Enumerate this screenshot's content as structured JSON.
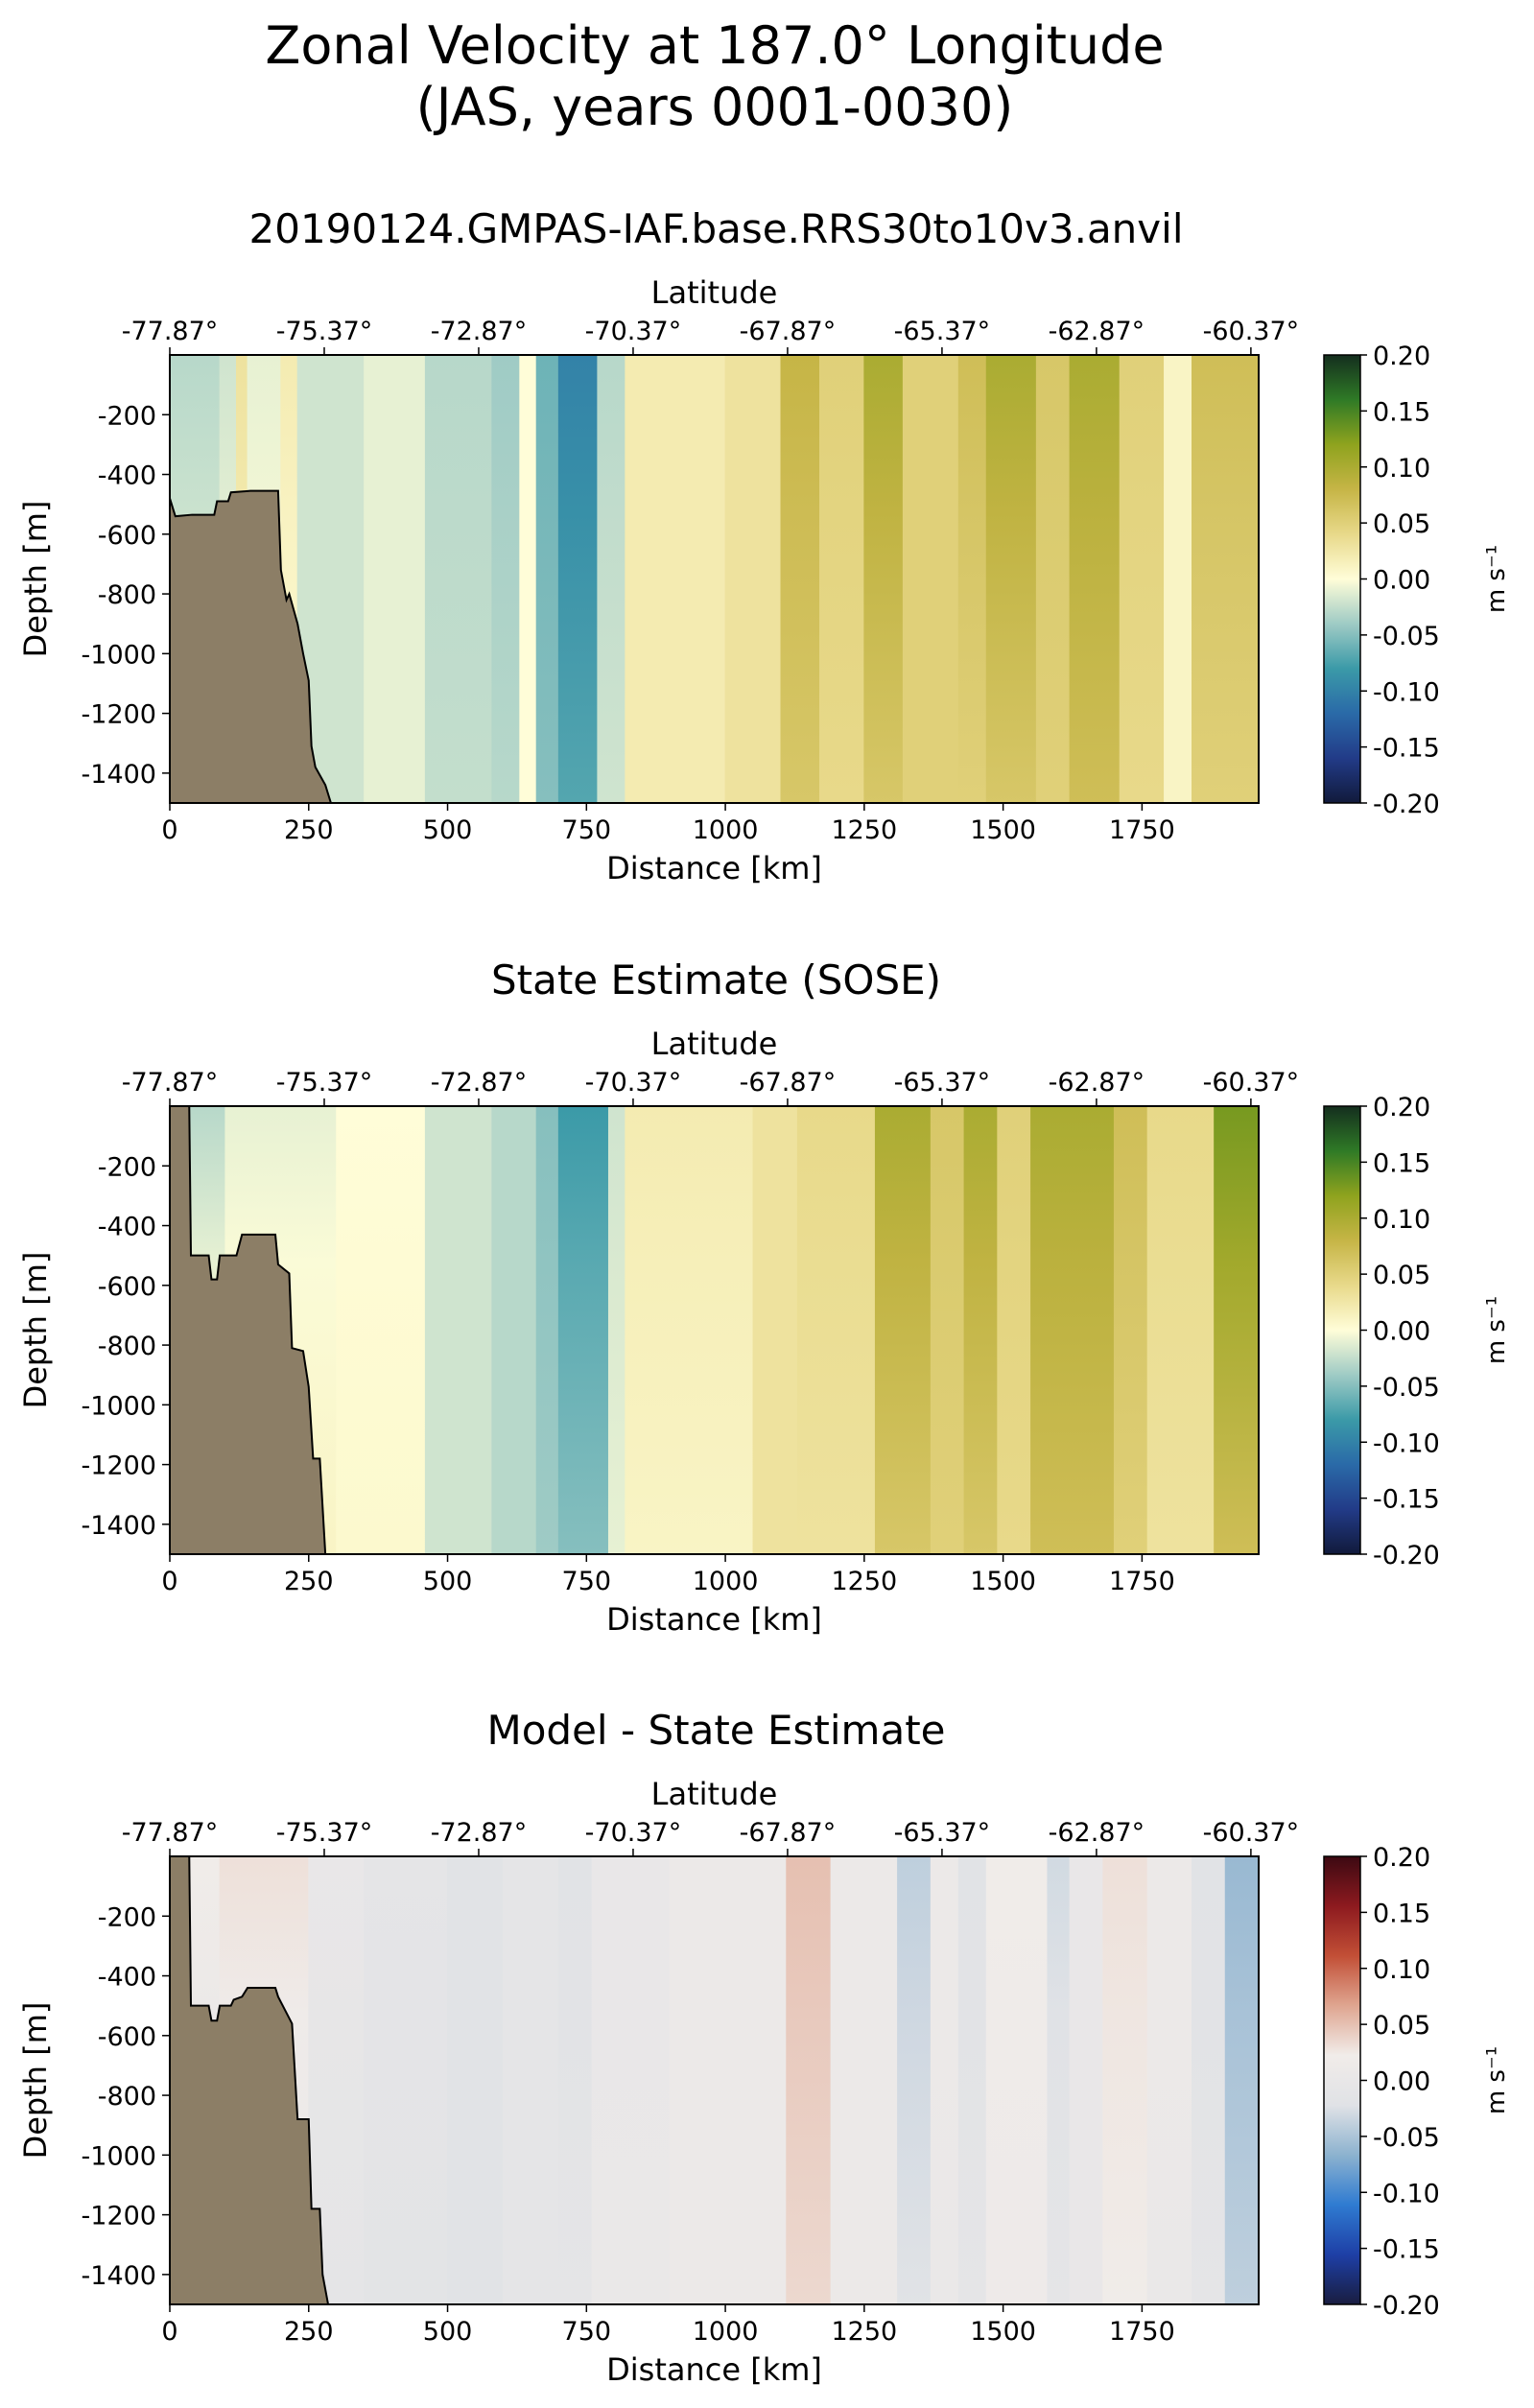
{
  "figure": {
    "title_line1": "Zonal Velocity at 187.0° Longitude",
    "title_line2": "(JAS, years 0001-0030)"
  },
  "chart_data": [
    {
      "type": "heatmap",
      "title": "20190124.GMPAS-IAF.base.RRS30to10v3.anvil",
      "xlabel": "Distance [km]",
      "ylabel": "Depth [m]",
      "top_xlabel": "Latitude",
      "xlim": [
        0,
        1960
      ],
      "ylim": [
        -1500,
        0
      ],
      "xticks": [
        0,
        250,
        500,
        750,
        1000,
        1250,
        1500,
        1750
      ],
      "xtick_labels": [
        "0",
        "250",
        "500",
        "750",
        "1000",
        "1250",
        "1500",
        "1750"
      ],
      "yticks": [
        -200,
        -400,
        -600,
        -800,
        -1000,
        -1200,
        -1400
      ],
      "ytick_labels": [
        "-200",
        "-400",
        "-600",
        "-800",
        "-1000",
        "-1200",
        "-1400"
      ],
      "top_xticks": [
        0,
        278,
        556,
        834,
        1112,
        1390,
        1668,
        1946
      ],
      "top_xtick_labels": [
        "-77.87°",
        "-75.37°",
        "-72.87°",
        "-70.37°",
        "-67.87°",
        "-65.37°",
        "-62.87°",
        "-60.37°"
      ],
      "colorbar": {
        "label": "m s⁻¹",
        "colormap": "cmocean-delta",
        "range": [
          -0.2,
          0.2
        ],
        "ticks": [
          0.2,
          0.15,
          0.1,
          0.05,
          0.0,
          -0.05,
          -0.1,
          -0.15,
          -0.2
        ],
        "tick_labels": [
          "0.20",
          "0.15",
          "0.10",
          "0.05",
          "0.00",
          "-0.05",
          "-0.10",
          "-0.15",
          "-0.20"
        ]
      },
      "bathymetry": [
        [
          0,
          -480
        ],
        [
          10,
          -540
        ],
        [
          40,
          -535
        ],
        [
          80,
          -535
        ],
        [
          85,
          -490
        ],
        [
          105,
          -490
        ],
        [
          110,
          -460
        ],
        [
          145,
          -455
        ],
        [
          175,
          -455
        ],
        [
          195,
          -455
        ],
        [
          200,
          -720
        ],
        [
          210,
          -820
        ],
        [
          215,
          -800
        ],
        [
          230,
          -900
        ],
        [
          240,
          -1000
        ],
        [
          250,
          -1090
        ],
        [
          255,
          -1310
        ],
        [
          262,
          -1380
        ],
        [
          280,
          -1440
        ],
        [
          290,
          -1500
        ]
      ],
      "columns": [
        {
          "x": [
            0,
            90
          ],
          "surface": -0.03,
          "deep": -0.01
        },
        {
          "x": [
            90,
            120
          ],
          "surface": -0.02,
          "deep": 0.0
        },
        {
          "x": [
            120,
            140
          ],
          "surface": 0.03,
          "deep": 0.01
        },
        {
          "x": [
            140,
            200
          ],
          "surface": -0.01,
          "deep": 0.0
        },
        {
          "x": [
            200,
            230
          ],
          "surface": 0.02,
          "deep": 0.0
        },
        {
          "x": [
            230,
            350
          ],
          "surface": -0.02,
          "deep": -0.02
        },
        {
          "x": [
            350,
            460
          ],
          "surface": -0.01,
          "deep": -0.01
        },
        {
          "x": [
            460,
            580
          ],
          "surface": -0.03,
          "deep": -0.025
        },
        {
          "x": [
            580,
            630
          ],
          "surface": -0.04,
          "deep": -0.03
        },
        {
          "x": [
            630,
            660
          ],
          "surface": 0.0,
          "deep": 0.0
        },
        {
          "x": [
            660,
            700
          ],
          "surface": -0.06,
          "deep": -0.05
        },
        {
          "x": [
            700,
            770
          ],
          "surface": -0.1,
          "deep": -0.07
        },
        {
          "x": [
            770,
            820
          ],
          "surface": -0.03,
          "deep": -0.02
        },
        {
          "x": [
            820,
            1000
          ],
          "surface": 0.02,
          "deep": 0.02
        },
        {
          "x": [
            1000,
            1100
          ],
          "surface": 0.03,
          "deep": 0.03
        },
        {
          "x": [
            1100,
            1170
          ],
          "surface": 0.08,
          "deep": 0.06
        },
        {
          "x": [
            1170,
            1250
          ],
          "surface": 0.05,
          "deep": 0.04
        },
        {
          "x": [
            1250,
            1320
          ],
          "surface": 0.1,
          "deep": 0.06
        },
        {
          "x": [
            1320,
            1420
          ],
          "surface": 0.05,
          "deep": 0.05
        },
        {
          "x": [
            1420,
            1470
          ],
          "surface": 0.07,
          "deep": 0.05
        },
        {
          "x": [
            1470,
            1560
          ],
          "surface": 0.1,
          "deep": 0.06
        },
        {
          "x": [
            1560,
            1620
          ],
          "surface": 0.06,
          "deep": 0.05
        },
        {
          "x": [
            1620,
            1710
          ],
          "surface": 0.1,
          "deep": 0.07
        },
        {
          "x": [
            1710,
            1790
          ],
          "surface": 0.05,
          "deep": 0.04
        },
        {
          "x": [
            1790,
            1840
          ],
          "surface": 0.01,
          "deep": 0.01
        },
        {
          "x": [
            1840,
            1960
          ],
          "surface": 0.07,
          "deep": 0.05
        }
      ]
    },
    {
      "type": "heatmap",
      "title": "State Estimate (SOSE)",
      "xlabel": "Distance [km]",
      "ylabel": "Depth [m]",
      "top_xlabel": "Latitude",
      "xlim": [
        0,
        1960
      ],
      "ylim": [
        -1500,
        0
      ],
      "xticks": [
        0,
        250,
        500,
        750,
        1000,
        1250,
        1500,
        1750
      ],
      "xtick_labels": [
        "0",
        "250",
        "500",
        "750",
        "1000",
        "1250",
        "1500",
        "1750"
      ],
      "yticks": [
        -200,
        -400,
        -600,
        -800,
        -1000,
        -1200,
        -1400
      ],
      "ytick_labels": [
        "-200",
        "-400",
        "-600",
        "-800",
        "-1000",
        "-1200",
        "-1400"
      ],
      "top_xticks": [
        0,
        278,
        556,
        834,
        1112,
        1390,
        1668,
        1946
      ],
      "top_xtick_labels": [
        "-77.87°",
        "-75.37°",
        "-72.87°",
        "-70.37°",
        "-67.87°",
        "-65.37°",
        "-62.87°",
        "-60.37°"
      ],
      "colorbar": {
        "label": "m s⁻¹",
        "colormap": "cmocean-delta",
        "range": [
          -0.2,
          0.2
        ],
        "ticks": [
          0.2,
          0.15,
          0.1,
          0.05,
          0.0,
          -0.05,
          -0.1,
          -0.15,
          -0.2
        ],
        "tick_labels": [
          "0.20",
          "0.15",
          "0.10",
          "0.05",
          "0.00",
          "-0.05",
          "-0.10",
          "-0.15",
          "-0.20"
        ]
      },
      "bathymetry": [
        [
          0,
          0
        ],
        [
          35,
          0
        ],
        [
          38,
          -500
        ],
        [
          70,
          -500
        ],
        [
          75,
          -580
        ],
        [
          85,
          -580
        ],
        [
          90,
          -500
        ],
        [
          120,
          -500
        ],
        [
          130,
          -430
        ],
        [
          190,
          -430
        ],
        [
          195,
          -530
        ],
        [
          215,
          -560
        ],
        [
          220,
          -810
        ],
        [
          240,
          -820
        ],
        [
          250,
          -940
        ],
        [
          258,
          -1180
        ],
        [
          270,
          -1180
        ],
        [
          280,
          -1500
        ]
      ],
      "columns": [
        {
          "x": [
            0,
            100
          ],
          "surface": -0.03,
          "deep": 0.02
        },
        {
          "x": [
            100,
            300
          ],
          "surface": -0.01,
          "deep": 0.01
        },
        {
          "x": [
            300,
            460
          ],
          "surface": 0.0,
          "deep": 0.005
        },
        {
          "x": [
            460,
            580
          ],
          "surface": -0.02,
          "deep": -0.02
        },
        {
          "x": [
            580,
            660
          ],
          "surface": -0.03,
          "deep": -0.03
        },
        {
          "x": [
            660,
            700
          ],
          "surface": -0.05,
          "deep": -0.04
        },
        {
          "x": [
            700,
            790
          ],
          "surface": -0.08,
          "deep": -0.05
        },
        {
          "x": [
            790,
            820
          ],
          "surface": -0.02,
          "deep": -0.01
        },
        {
          "x": [
            820,
            1050
          ],
          "surface": 0.02,
          "deep": 0.01
        },
        {
          "x": [
            1050,
            1130
          ],
          "surface": 0.03,
          "deep": 0.03
        },
        {
          "x": [
            1130,
            1270
          ],
          "surface": 0.04,
          "deep": 0.03
        },
        {
          "x": [
            1270,
            1370
          ],
          "surface": 0.1,
          "deep": 0.06
        },
        {
          "x": [
            1370,
            1430
          ],
          "surface": 0.06,
          "deep": 0.05
        },
        {
          "x": [
            1430,
            1490
          ],
          "surface": 0.1,
          "deep": 0.06
        },
        {
          "x": [
            1490,
            1550
          ],
          "surface": 0.05,
          "deep": 0.04
        },
        {
          "x": [
            1550,
            1700
          ],
          "surface": 0.1,
          "deep": 0.07
        },
        {
          "x": [
            1700,
            1760
          ],
          "surface": 0.07,
          "deep": 0.05
        },
        {
          "x": [
            1760,
            1880
          ],
          "surface": 0.04,
          "deep": 0.03
        },
        {
          "x": [
            1880,
            1960
          ],
          "surface": 0.13,
          "deep": 0.07
        }
      ]
    },
    {
      "type": "heatmap",
      "title": "Model - State Estimate",
      "xlabel": "Distance [km]",
      "ylabel": "Depth [m]",
      "top_xlabel": "Latitude",
      "xlim": [
        0,
        1960
      ],
      "ylim": [
        -1500,
        0
      ],
      "xticks": [
        0,
        250,
        500,
        750,
        1000,
        1250,
        1500,
        1750
      ],
      "xtick_labels": [
        "0",
        "250",
        "500",
        "750",
        "1000",
        "1250",
        "1500",
        "1750"
      ],
      "yticks": [
        -200,
        -400,
        -600,
        -800,
        -1000,
        -1200,
        -1400
      ],
      "ytick_labels": [
        "-200",
        "-400",
        "-600",
        "-800",
        "-1000",
        "-1200",
        "-1400"
      ],
      "top_xticks": [
        0,
        278,
        556,
        834,
        1112,
        1390,
        1668,
        1946
      ],
      "top_xtick_labels": [
        "-77.87°",
        "-75.37°",
        "-72.87°",
        "-70.37°",
        "-67.87°",
        "-65.37°",
        "-62.87°",
        "-60.37°"
      ],
      "colorbar": {
        "label": "m s⁻¹",
        "colormap": "cmocean-balance",
        "range": [
          -0.2,
          0.2
        ],
        "ticks": [
          0.2,
          0.15,
          0.1,
          0.05,
          0.0,
          -0.05,
          -0.1,
          -0.15,
          -0.2
        ],
        "tick_labels": [
          "0.20",
          "0.15",
          "0.10",
          "0.05",
          "0.00",
          "-0.05",
          "-0.10",
          "-0.15",
          "-0.20"
        ]
      },
      "bathymetry": [
        [
          0,
          0
        ],
        [
          35,
          0
        ],
        [
          38,
          -500
        ],
        [
          70,
          -500
        ],
        [
          75,
          -550
        ],
        [
          85,
          -550
        ],
        [
          90,
          -500
        ],
        [
          110,
          -500
        ],
        [
          115,
          -480
        ],
        [
          130,
          -470
        ],
        [
          140,
          -440
        ],
        [
          190,
          -440
        ],
        [
          195,
          -470
        ],
        [
          220,
          -560
        ],
        [
          230,
          -880
        ],
        [
          250,
          -880
        ],
        [
          255,
          -1180
        ],
        [
          270,
          -1180
        ],
        [
          275,
          -1400
        ],
        [
          285,
          -1500
        ]
      ],
      "columns": [
        {
          "x": [
            0,
            90
          ],
          "surface": 0.02,
          "deep": -0.01
        },
        {
          "x": [
            90,
            250
          ],
          "surface": 0.03,
          "deep": 0.0
        },
        {
          "x": [
            250,
            350
          ],
          "surface": 0.0,
          "deep": -0.01
        },
        {
          "x": [
            350,
            500
          ],
          "surface": -0.01,
          "deep": -0.015
        },
        {
          "x": [
            500,
            600
          ],
          "surface": -0.02,
          "deep": -0.02
        },
        {
          "x": [
            600,
            700
          ],
          "surface": -0.01,
          "deep": -0.01
        },
        {
          "x": [
            700,
            760
          ],
          "surface": -0.02,
          "deep": -0.01
        },
        {
          "x": [
            760,
            900
          ],
          "surface": 0.0,
          "deep": 0.005
        },
        {
          "x": [
            900,
            1110
          ],
          "surface": 0.01,
          "deep": 0.01
        },
        {
          "x": [
            1110,
            1190
          ],
          "surface": 0.05,
          "deep": 0.035
        },
        {
          "x": [
            1190,
            1310
          ],
          "surface": 0.01,
          "deep": 0.01
        },
        {
          "x": [
            1310,
            1370
          ],
          "surface": -0.04,
          "deep": -0.02
        },
        {
          "x": [
            1370,
            1420
          ],
          "surface": 0.01,
          "deep": 0.005
        },
        {
          "x": [
            1420,
            1470
          ],
          "surface": -0.02,
          "deep": -0.01
        },
        {
          "x": [
            1470,
            1520
          ],
          "surface": 0.02,
          "deep": 0.015
        },
        {
          "x": [
            1520,
            1580
          ],
          "surface": 0.02,
          "deep": 0.015
        },
        {
          "x": [
            1580,
            1620
          ],
          "surface": -0.03,
          "deep": -0.01
        },
        {
          "x": [
            1620,
            1680
          ],
          "surface": 0.0,
          "deep": 0.0
        },
        {
          "x": [
            1680,
            1760
          ],
          "surface": 0.03,
          "deep": 0.02
        },
        {
          "x": [
            1760,
            1840
          ],
          "surface": 0.01,
          "deep": 0.005
        },
        {
          "x": [
            1840,
            1900
          ],
          "surface": -0.02,
          "deep": -0.01
        },
        {
          "x": [
            1900,
            1960
          ],
          "surface": -0.06,
          "deep": -0.04
        }
      ]
    }
  ],
  "colors": {
    "land": "#8c7e66",
    "delta_stops": [
      "#111a3b",
      "#223b88",
      "#2a6aa8",
      "#3b9aa8",
      "#9fcbc5",
      "#fffdd8",
      "#e8d98a",
      "#c6b546",
      "#8fa31e",
      "#2f7a26",
      "#142e1e"
    ],
    "balance_stops": [
      "#191d40",
      "#1e3fa6",
      "#2f7bd1",
      "#8cb2cf",
      "#e0e2e6",
      "#f1ece9",
      "#dfa590",
      "#c24f36",
      "#8d1a1f",
      "#3c0912"
    ]
  }
}
